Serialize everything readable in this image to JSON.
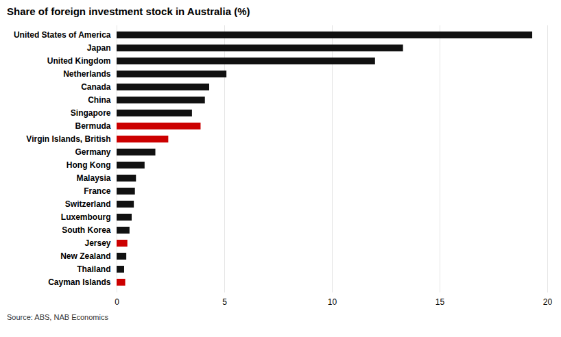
{
  "chart_data": {
    "type": "bar",
    "orientation": "horizontal",
    "title": "Share of foreign investment stock in Australia (%)",
    "source": "Source: ABS, NAB Economics",
    "categories": [
      "Cayman Islands",
      "Thailand",
      "New Zealand",
      "Jersey",
      "South Korea",
      "Luxembourg",
      "Switzerland",
      "France",
      "Malaysia",
      "Hong Kong",
      "Germany",
      "Virgin Islands, British",
      "Bermuda",
      "Singapore",
      "China",
      "Canada",
      "Netherlands",
      "United Kingdom",
      "Japan",
      "United States of America"
    ],
    "values": [
      0.4,
      0.35,
      0.45,
      0.5,
      0.6,
      0.7,
      0.8,
      0.85,
      0.9,
      1.3,
      1.8,
      2.4,
      3.9,
      3.5,
      4.1,
      4.3,
      5.1,
      12.0,
      13.3,
      19.3
    ],
    "colors": [
      "#cc0000",
      "#111111",
      "#111111",
      "#cc0000",
      "#111111",
      "#111111",
      "#111111",
      "#111111",
      "#111111",
      "#111111",
      "#111111",
      "#cc0000",
      "#cc0000",
      "#111111",
      "#111111",
      "#111111",
      "#111111",
      "#111111",
      "#111111",
      "#111111"
    ],
    "xlim": [
      0,
      20
    ],
    "xticks": [
      0,
      5,
      10,
      15,
      20
    ],
    "grid": true
  }
}
